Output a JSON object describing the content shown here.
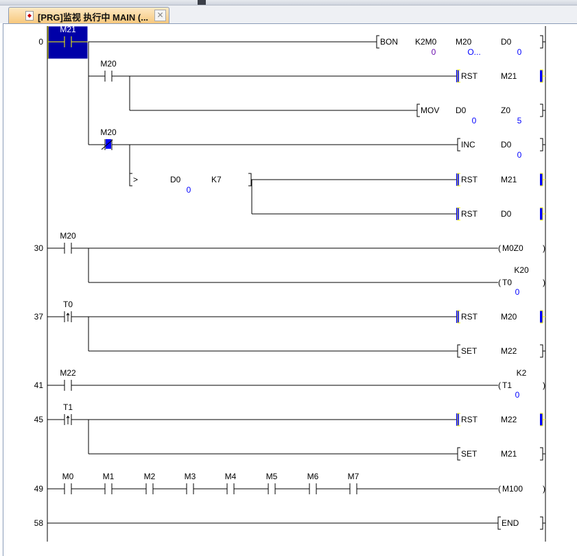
{
  "tab": {
    "title": "[PRG]监视 执行中 MAIN (...",
    "icon": "program-icon",
    "close_icon": "close-icon"
  },
  "colors": {
    "wire": "#000000",
    "selection": "#0000a8",
    "value": "#0000ff",
    "highlight": "#0000ff",
    "tab": "#f7c77a"
  },
  "steps": [
    "0",
    "30",
    "37",
    "41",
    "45",
    "49",
    "58"
  ],
  "contacts": [
    {
      "label": "M21",
      "type": "normally-open",
      "selected": true
    },
    {
      "label": "M20",
      "type": "normally-open"
    },
    {
      "label": "M20",
      "type": "normally-closed",
      "energized": true
    },
    {
      "label": "M20",
      "type": "normally-open"
    },
    {
      "label": "T0",
      "type": "rising-edge"
    },
    {
      "label": "M22",
      "type": "normally-open"
    },
    {
      "label": "T1",
      "type": "rising-edge"
    },
    {
      "label": "M0",
      "type": "normally-open"
    },
    {
      "label": "M1",
      "type": "normally-open"
    },
    {
      "label": "M2",
      "type": "normally-open"
    },
    {
      "label": "M3",
      "type": "normally-open"
    },
    {
      "label": "M4",
      "type": "normally-open"
    },
    {
      "label": "M5",
      "type": "normally-open"
    },
    {
      "label": "M6",
      "type": "normally-open"
    },
    {
      "label": "M7",
      "type": "normally-open"
    }
  ],
  "instructions": [
    {
      "kind": "function",
      "op": "BON",
      "operands": [
        {
          "name": "K2M0",
          "value": "0"
        },
        {
          "name": "M20",
          "value": "O..."
        },
        {
          "name": "D0",
          "value": "0"
        }
      ]
    },
    {
      "kind": "function",
      "op": "RST",
      "operands": [
        {
          "name": "M21"
        }
      ],
      "energized": true
    },
    {
      "kind": "function",
      "op": "MOV",
      "operands": [
        {
          "name": "D0",
          "value": "0"
        },
        {
          "name": "Z0",
          "value": "5"
        }
      ]
    },
    {
      "kind": "function",
      "op": "INC",
      "operands": [
        {
          "name": "D0",
          "value": "0"
        }
      ]
    },
    {
      "kind": "compare",
      "op": ">",
      "operands": [
        {
          "name": "D0",
          "value": "0"
        },
        {
          "name": "K7"
        }
      ]
    },
    {
      "kind": "function",
      "op": "RST",
      "operands": [
        {
          "name": "M21"
        }
      ],
      "energized": true
    },
    {
      "kind": "function",
      "op": "RST",
      "operands": [
        {
          "name": "D0"
        }
      ],
      "energized": true
    },
    {
      "kind": "coil",
      "op": "M0Z0"
    },
    {
      "kind": "coil",
      "op": "T0",
      "setting": "K20",
      "value": "0"
    },
    {
      "kind": "function",
      "op": "RST",
      "operands": [
        {
          "name": "M20"
        }
      ],
      "energized": true
    },
    {
      "kind": "function",
      "op": "SET",
      "operands": [
        {
          "name": "M22"
        }
      ]
    },
    {
      "kind": "coil",
      "op": "T1",
      "setting": "K2",
      "value": "0"
    },
    {
      "kind": "function",
      "op": "RST",
      "operands": [
        {
          "name": "M22"
        }
      ],
      "energized": true
    },
    {
      "kind": "function",
      "op": "SET",
      "operands": [
        {
          "name": "M21"
        }
      ]
    },
    {
      "kind": "coil",
      "op": "M100"
    },
    {
      "kind": "function",
      "op": "END",
      "operands": []
    }
  ]
}
